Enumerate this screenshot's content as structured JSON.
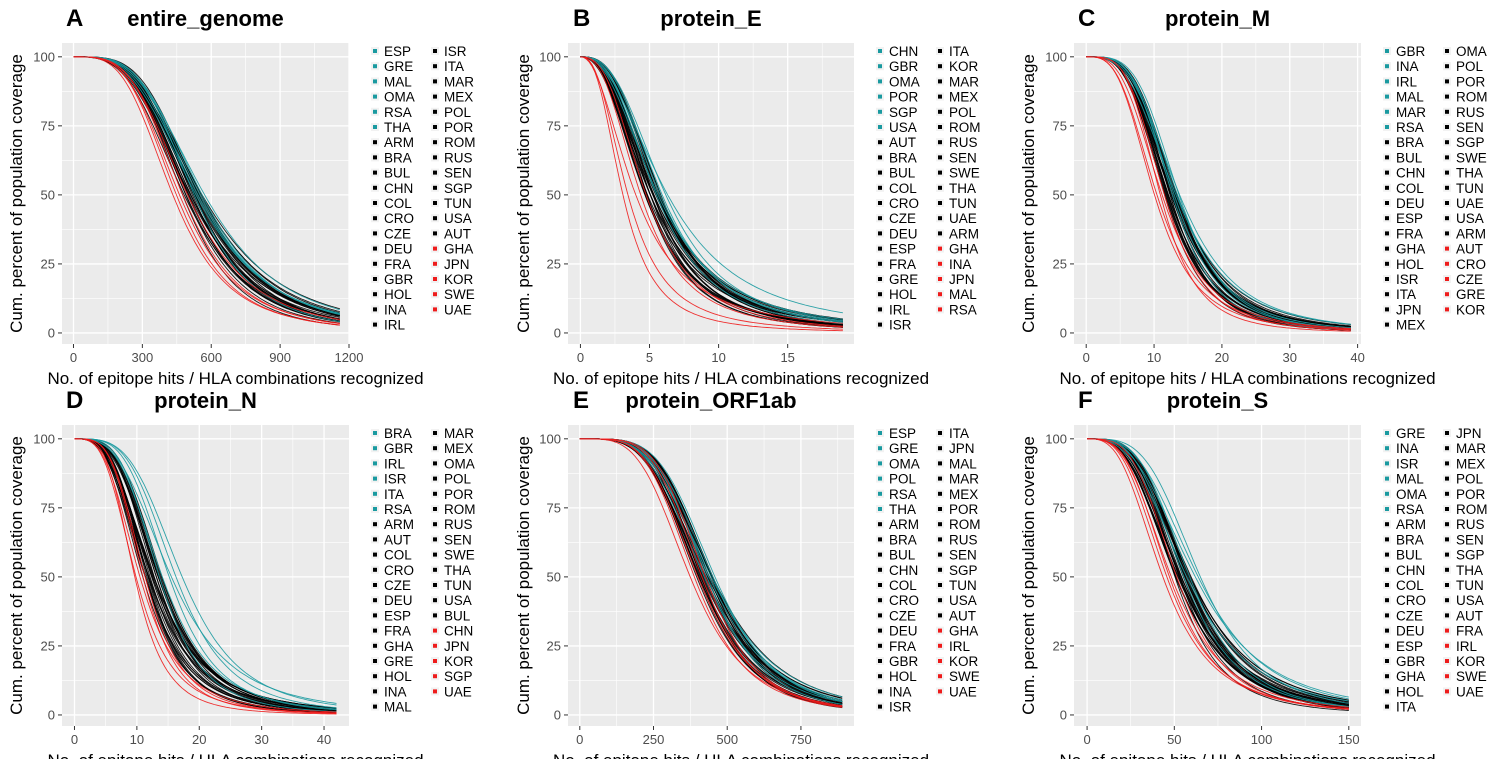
{
  "colors": {
    "panel_bg": "#ebebeb",
    "grid": "#ffffff",
    "teal": "#1a9aa0",
    "black": "#000000",
    "red": "#ee1c1c"
  },
  "chart_data": [
    {
      "letter": "A",
      "title": "entire_genome",
      "type": "line",
      "xlabel": "No. of epitope hits / HLA combinations recognized",
      "ylabel": "Cum. percent of population coverage",
      "xlim": [
        -50,
        1200
      ],
      "ylim": [
        -4,
        105
      ],
      "xticks": [
        0,
        300,
        600,
        900,
        1200
      ],
      "yticks": [
        0,
        25,
        50,
        75,
        100
      ],
      "curve_model": "sigmoid 100/(1+(x/m)^k), one line per country",
      "groups": {
        "teal": {
          "median_range": [
            520,
            575
          ],
          "steepness": 3.6
        },
        "black": {
          "median_range": [
            480,
            560
          ],
          "steepness": 3.6
        },
        "red": {
          "median_range": [
            420,
            500
          ],
          "steepness": 3.6
        }
      },
      "xmax_drawn": 1160,
      "legend": {
        "teal": [
          "ESP",
          "GRE",
          "MAL",
          "OMA",
          "RSA",
          "THA"
        ],
        "black": [
          "ARM",
          "BRA",
          "BUL",
          "CHN",
          "COL",
          "CRO",
          "CZE",
          "DEU",
          "FRA",
          "GBR",
          "HOL",
          "INA",
          "IRL",
          "ISR",
          "ITA",
          "MAR",
          "MEX",
          "POL",
          "POR",
          "ROM",
          "RUS",
          "SEN",
          "SGP",
          "TUN",
          "USA",
          "AUT"
        ],
        "red": [
          "GHA",
          "JPN",
          "KOR",
          "SWE",
          "UAE"
        ]
      }
    },
    {
      "letter": "B",
      "title": "protein_E",
      "type": "line",
      "xlabel": "No. of epitope hits / HLA combinations recognized",
      "ylabel": "Cum. percent of population coverage",
      "xlim": [
        -0.9,
        19.8
      ],
      "ylim": [
        -4,
        105
      ],
      "xticks": [
        0,
        5,
        10,
        15
      ],
      "yticks": [
        0,
        25,
        50,
        75,
        100
      ],
      "curve_model": "sigmoid 100/(1+(x/m)^k), one line per country",
      "groups": {
        "teal": {
          "median_range": [
            5.4,
            6.4
          ],
          "steepness": 2.6
        },
        "black": {
          "median_range": [
            4.6,
            5.9
          ],
          "steepness": 2.6
        },
        "red": {
          "median_range": [
            3.0,
            4.8
          ],
          "steepness": 2.4
        }
      },
      "xmax_drawn": 19,
      "legend": {
        "teal": [
          "CHN",
          "GBR",
          "OMA",
          "POR",
          "SGP",
          "USA"
        ],
        "black": [
          "AUT",
          "BRA",
          "BUL",
          "COL",
          "CRO",
          "CZE",
          "DEU",
          "ESP",
          "FRA",
          "GRE",
          "HOL",
          "IRL",
          "ISR",
          "ITA",
          "KOR",
          "MAR",
          "MEX",
          "POL",
          "ROM",
          "RUS",
          "SEN",
          "SWE",
          "THA",
          "TUN",
          "UAE",
          "ARM"
        ],
        "red": [
          "GHA",
          "INA",
          "JPN",
          "MAL",
          "RSA"
        ]
      }
    },
    {
      "letter": "C",
      "title": "protein_M",
      "type": "line",
      "xlabel": "No. of epitope hits / HLA combinations recognized",
      "ylabel": "Cum. percent of population coverage",
      "xlim": [
        -1.8,
        40.5
      ],
      "ylim": [
        -4,
        105
      ],
      "xticks": [
        0,
        10,
        20,
        30,
        40
      ],
      "yticks": [
        0,
        25,
        50,
        75,
        100
      ],
      "curve_model": "sigmoid 100/(1+(x/m)^k), one line per country",
      "groups": {
        "teal": {
          "median_range": [
            12.5,
            14.0
          ],
          "steepness": 3.6
        },
        "black": {
          "median_range": [
            11.5,
            13.5
          ],
          "steepness": 3.6
        },
        "red": {
          "median_range": [
            10.0,
            11.8
          ],
          "steepness": 3.6
        }
      },
      "xmax_drawn": 39,
      "legend": {
        "teal": [
          "GBR",
          "INA",
          "IRL",
          "MAL",
          "MAR",
          "RSA"
        ],
        "black": [
          "BRA",
          "BUL",
          "CHN",
          "COL",
          "DEU",
          "ESP",
          "FRA",
          "GHA",
          "HOL",
          "ISR",
          "ITA",
          "JPN",
          "MEX",
          "OMA",
          "POL",
          "POR",
          "ROM",
          "RUS",
          "SEN",
          "SGP",
          "SWE",
          "THA",
          "TUN",
          "UAE",
          "USA",
          "ARM"
        ],
        "red": [
          "AUT",
          "CRO",
          "CZE",
          "GRE",
          "KOR"
        ]
      }
    },
    {
      "letter": "D",
      "title": "protein_N",
      "type": "line",
      "xlabel": "No. of epitope hits / HLA combinations recognized",
      "ylabel": "Cum. percent of population coverage",
      "xlim": [
        -2,
        44
      ],
      "ylim": [
        -4,
        105
      ],
      "xticks": [
        0,
        10,
        20,
        30,
        40
      ],
      "yticks": [
        0,
        25,
        50,
        75,
        100
      ],
      "curve_model": "sigmoid 100/(1+(x/m)^k), one line per country",
      "groups": {
        "teal": {
          "median_range": [
            13.0,
            17.5
          ],
          "steepness": 3.5
        },
        "black": {
          "median_range": [
            11.0,
            14.0
          ],
          "steepness": 3.4
        },
        "red": {
          "median_range": [
            9.3,
            11.5
          ],
          "steepness": 3.6
        }
      },
      "xmax_drawn": 42,
      "legend": {
        "teal": [
          "BRA",
          "GBR",
          "IRL",
          "ISR",
          "ITA",
          "RSA"
        ],
        "black": [
          "ARM",
          "AUT",
          "COL",
          "CRO",
          "CZE",
          "DEU",
          "ESP",
          "FRA",
          "GHA",
          "GRE",
          "HOL",
          "INA",
          "MAL",
          "MAR",
          "MEX",
          "OMA",
          "POL",
          "POR",
          "ROM",
          "RUS",
          "SEN",
          "SWE",
          "THA",
          "TUN",
          "USA",
          "BUL"
        ],
        "red": [
          "CHN",
          "JPN",
          "KOR",
          "SGP",
          "UAE"
        ]
      }
    },
    {
      "letter": "E",
      "title": "protein_ORF1ab",
      "type": "line",
      "xlabel": "No. of epitope hits / HLA combinations recognized",
      "ylabel": "Cum. percent of population coverage",
      "xlim": [
        -40,
        930
      ],
      "ylim": [
        -4,
        105
      ],
      "xticks": [
        0,
        250,
        500,
        750
      ],
      "yticks": [
        0,
        25,
        50,
        75,
        100
      ],
      "curve_model": "sigmoid 100/(1+(x/m)^k), one line per country",
      "groups": {
        "teal": {
          "median_range": [
            420,
            460
          ],
          "steepness": 4.3
        },
        "black": {
          "median_range": [
            395,
            455
          ],
          "steepness": 4.3
        },
        "red": {
          "median_range": [
            365,
            430
          ],
          "steepness": 4.3
        }
      },
      "xmax_drawn": 890,
      "legend": {
        "teal": [
          "ESP",
          "GRE",
          "OMA",
          "POL",
          "RSA",
          "THA"
        ],
        "black": [
          "ARM",
          "BRA",
          "BUL",
          "CHN",
          "COL",
          "CRO",
          "CZE",
          "DEU",
          "FRA",
          "GBR",
          "HOL",
          "INA",
          "ISR",
          "ITA",
          "JPN",
          "MAL",
          "MAR",
          "MEX",
          "POR",
          "ROM",
          "RUS",
          "SEN",
          "SGP",
          "TUN",
          "USA",
          "AUT"
        ],
        "red": [
          "GHA",
          "IRL",
          "KOR",
          "SWE",
          "UAE"
        ]
      }
    },
    {
      "letter": "F",
      "title": "protein_S",
      "type": "line",
      "xlabel": "No. of epitope hits / HLA combinations recognized",
      "ylabel": "Cum. percent of population coverage",
      "xlim": [
        -7.5,
        157
      ],
      "ylim": [
        -4,
        105
      ],
      "xticks": [
        0,
        50,
        100,
        150
      ],
      "yticks": [
        0,
        25,
        50,
        75,
        100
      ],
      "curve_model": "sigmoid 100/(1+(x/m)^k), one line per country",
      "groups": {
        "teal": {
          "median_range": [
            55,
            66
          ],
          "steepness": 3.4
        },
        "black": {
          "median_range": [
            50,
            60
          ],
          "steepness": 3.4
        },
        "red": {
          "median_range": [
            42,
            52
          ],
          "steepness": 3.4
        }
      },
      "xmax_drawn": 150,
      "legend": {
        "teal": [
          "GRE",
          "INA",
          "ISR",
          "MAL",
          "OMA",
          "RSA"
        ],
        "black": [
          "ARM",
          "BRA",
          "BUL",
          "CHN",
          "COL",
          "CRO",
          "CZE",
          "DEU",
          "ESP",
          "GBR",
          "GHA",
          "HOL",
          "ITA",
          "JPN",
          "MAR",
          "MEX",
          "POL",
          "POR",
          "ROM",
          "RUS",
          "SEN",
          "SGP",
          "THA",
          "TUN",
          "USA",
          "AUT"
        ],
        "red": [
          "FRA",
          "IRL",
          "KOR",
          "SWE",
          "UAE"
        ]
      }
    }
  ]
}
